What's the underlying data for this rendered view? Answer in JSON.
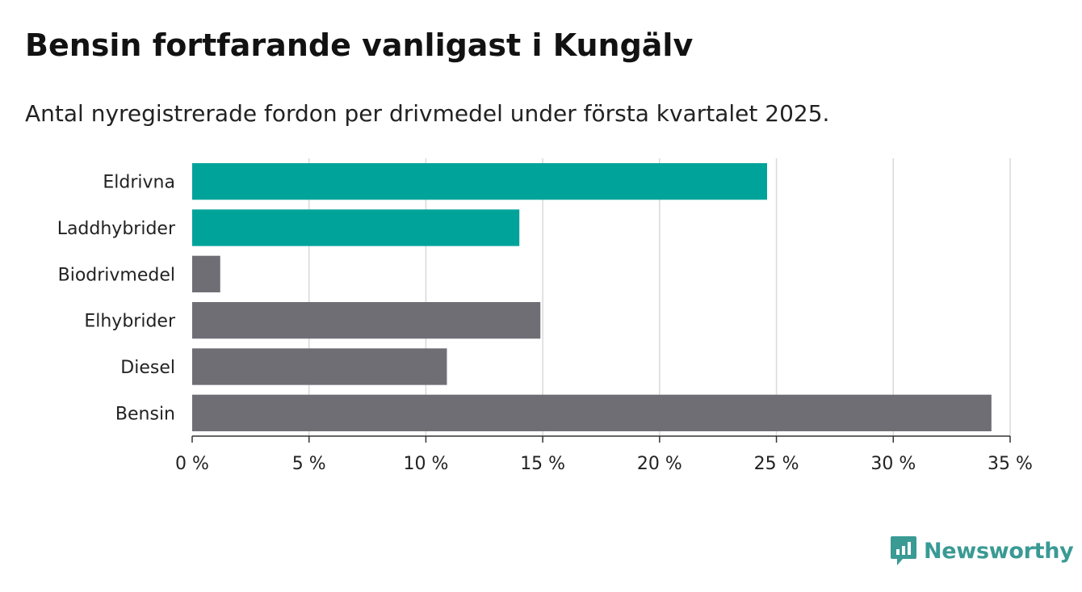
{
  "header": {
    "title": "Bensin fortfarande vanligast i Kungälv",
    "subtitle": "Antal nyregistrerade fordon per drivmedel under första kvartalet 2025."
  },
  "chart_data": {
    "type": "bar",
    "orientation": "horizontal",
    "categories": [
      "Eldrivna",
      "Laddhybrider",
      "Biodrivmedel",
      "Elhybrider",
      "Diesel",
      "Bensin"
    ],
    "values": [
      24.6,
      14.0,
      1.2,
      14.9,
      10.9,
      34.2
    ],
    "bar_colors": [
      "#00a39a",
      "#00a39a",
      "#6f6e75",
      "#6f6e75",
      "#6f6e75",
      "#6f6e75"
    ],
    "xlim": [
      0,
      35
    ],
    "x_ticks": [
      0,
      5,
      10,
      15,
      20,
      25,
      30,
      35
    ],
    "x_tick_labels": [
      "0 %",
      "5 %",
      "10 %",
      "15 %",
      "20 %",
      "25 %",
      "30 %",
      "35 %"
    ],
    "grid": "vertical",
    "xlabel": "",
    "ylabel": ""
  },
  "brand": {
    "name": "Newsworthy",
    "logo_icon": "newsworthy-logo-icon",
    "color": "#3a9a94"
  }
}
